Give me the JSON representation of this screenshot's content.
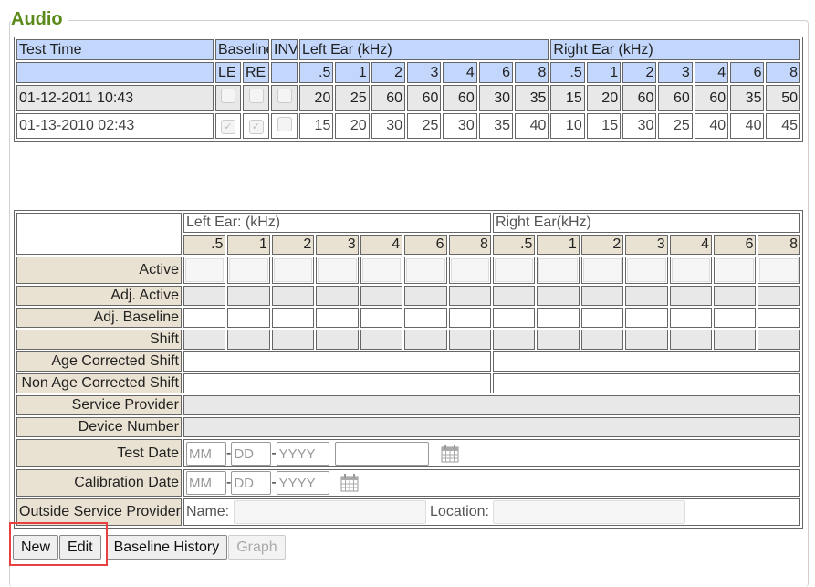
{
  "section_title": "Audio",
  "history": {
    "headers": {
      "test_time": "Test Time",
      "baseline": "Baseline",
      "inv": "INV",
      "left_ear": "Left Ear (kHz)",
      "right_ear": "Right Ear (kHz)",
      "le": "LE",
      "re": "RE"
    },
    "freqs": [
      ".5",
      "1",
      "2",
      "3",
      "4",
      "6",
      "8"
    ],
    "rows": [
      {
        "time": "01-12-2011 10:43",
        "le": false,
        "re": false,
        "inv": false,
        "left": [
          "20",
          "25",
          "60",
          "60",
          "60",
          "30",
          "35"
        ],
        "right": [
          "15",
          "20",
          "60",
          "60",
          "60",
          "35",
          "50"
        ]
      },
      {
        "time": "01-13-2010 02:43",
        "le": true,
        "re": true,
        "inv": false,
        "left": [
          "15",
          "20",
          "30",
          "25",
          "30",
          "35",
          "40"
        ],
        "right": [
          "10",
          "15",
          "30",
          "25",
          "40",
          "40",
          "45"
        ]
      }
    ]
  },
  "form": {
    "left_ear": "Left Ear: (kHz)",
    "right_ear": "Right Ear(kHz)",
    "rows": {
      "active": "Active",
      "adj_active": "Adj. Active",
      "adj_baseline": "Adj. Baseline",
      "shift": "Shift",
      "age_corrected": "Age Corrected Shift",
      "non_age_corrected": "Non Age Corrected Shift",
      "service_provider": "Service Provider",
      "device_number": "Device Number",
      "test_date": "Test Date",
      "calibration_date": "Calibration Date",
      "outside_provider": "Outside Service Provider"
    },
    "date_placeholders": {
      "mm": "MM",
      "dd": "DD",
      "yyyy": "YYYY",
      "sep": "-"
    },
    "name_label": "Name:",
    "location_label": "Location:"
  },
  "buttons": {
    "new": "New",
    "edit": "Edit",
    "baseline_history": "Baseline History",
    "graph": "Graph"
  }
}
